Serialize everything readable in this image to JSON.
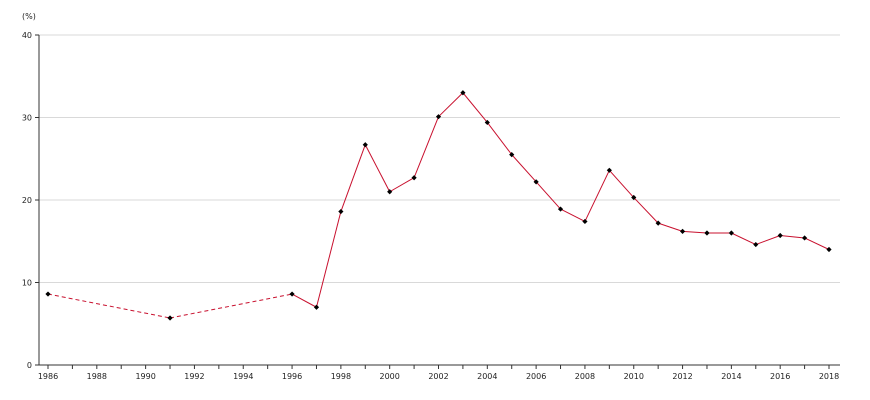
{
  "chart_data": {
    "type": "line",
    "title": "",
    "unit_label": "(%)",
    "xlabel": "",
    "ylabel": "",
    "xlim": [
      1986,
      2018
    ],
    "ylim": [
      0,
      40
    ],
    "grid": "horizontal",
    "y_ticks": [
      0,
      10,
      20,
      30,
      40
    ],
    "x_ticks": [
      1986,
      1988,
      1990,
      1992,
      1994,
      1996,
      1998,
      2000,
      2002,
      2004,
      2006,
      2008,
      2010,
      2012,
      2014,
      2016,
      2018
    ],
    "colors": {
      "line": "#c8102e",
      "marker": "#000000",
      "grid": "#d9d9d9",
      "axis": "#333333"
    },
    "series": [
      {
        "x": [
          1986,
          1991,
          1996,
          1997,
          1998,
          1999,
          2000,
          2001,
          2002,
          2003,
          2004,
          2005,
          2006,
          2007,
          2008,
          2009,
          2010,
          2011,
          2012,
          2013,
          2014,
          2015,
          2016,
          2017,
          2018
        ],
        "values": [
          8.6,
          5.7,
          8.6,
          7.0,
          18.6,
          26.7,
          21.0,
          22.7,
          30.1,
          33.0,
          29.4,
          25.5,
          22.2,
          18.9,
          17.4,
          23.6,
          20.3,
          17.2,
          16.2,
          16.0,
          16.0,
          14.6,
          15.7,
          15.4,
          14.0
        ],
        "dashed_until": 1996
      }
    ]
  }
}
